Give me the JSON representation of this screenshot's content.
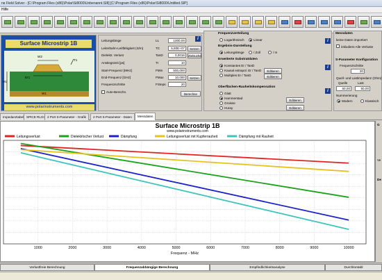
{
  "window": {
    "title": "ne Field Solver - [C:\\Program Files (x86)\\Polar\\Si8000\\Unbenannt.SI8] [C:\\Program Files (x86)\\Polar\\Si8000\\Untitled.SIP]"
  },
  "menu": {
    "item": "Hilfe"
  },
  "structure": {
    "title": "Surface Microstrip 1B",
    "url": "www.polarinstruments.com",
    "labels": {
      "w2": "W2",
      "w1": "W1",
      "t1": "T1",
      "h1": "H1",
      "er1": "Er1"
    }
  },
  "params": {
    "rows": [
      {
        "label": "Leitungslänge",
        "symbol": "LL",
        "value": "1000,00"
      },
      {
        "label": "Leiterbahn-Leitfähigkeit (S/m)",
        "symbol": "TC",
        "value": "5,80E+07",
        "button": "Setzen"
      },
      {
        "label": "Dielektr. Verlust",
        "symbol": "TanD",
        "value": "0,0016",
        "button": "Zielsuche"
      },
      {
        "label": "Anstiegszeit [ps]",
        "symbol": "Tr",
        "value": "10"
      },
      {
        "label": "Start-Frequenz [MHz]",
        "symbol": "FMin",
        "value": "500,000"
      },
      {
        "label": "End-Frequenz [GHz]",
        "symbol": "FMax",
        "value": "10,000",
        "button": "Setzen"
      },
      {
        "label": "Frequenzschritte",
        "symbol": "FSteps",
        "value": "20"
      }
    ],
    "auto_label": "Auto-Berechn.",
    "calc_button": "Berechne"
  },
  "freq": {
    "title": "Frequenzverteilung",
    "log": "Logarithmisch",
    "lin": "Linear",
    "output_title": "Ergebnis-Darstellung",
    "out1": "Leitungslänge",
    "out2": "/ Zoll",
    "out3": "/ m",
    "substrate_title": "Erweiterte Substratdaten",
    "sub1": "Konstantes Er / TanD",
    "sub2": "Kausal extrapol. Er / TanD",
    "sub3": "Multiples Er / TanD",
    "edit": "Editieren",
    "rough_title": "Oberflächen-Rauheitskompensation",
    "r1": "Glatt",
    "r2": "Hammerstad",
    "r3": "Groisse",
    "r4": "Huray"
  },
  "meas": {
    "title": "Messdaten",
    "status": "keine Daten importiert",
    "include": "inkludiere Alle Verluste"
  },
  "sparam": {
    "title": "S-Parameter Konfiguration",
    "steps": "Frequenzschritte",
    "steps_value": "20",
    "impedance": "Quell- und Lastimpedanz (Ohm)",
    "source": "Quelle",
    "load": "Last",
    "source_value": "50,00",
    "load_value": "50,00",
    "numbering": "Nummerierung",
    "modern": "Modern",
    "classic": "Klassisch"
  },
  "tabs": [
    "Impedanztabelle",
    "SPICE RLGC",
    "2 Port S-Parameter - Grafik",
    "2 Port S-Parameter - Daten",
    "Messdaten"
  ],
  "chart_data": {
    "type": "line",
    "title": "Surface Microstrip 1B",
    "subtitle": "www.polarinstruments.com",
    "xlabel": "Frequenz - MHz",
    "ylabel": "",
    "xlim": [
      0,
      10500
    ],
    "x_ticks": [
      1000,
      2000,
      3000,
      4000,
      5000,
      6000,
      7000,
      8000,
      9000,
      10000
    ],
    "grid": true,
    "legend_position": "top",
    "x": [
      500,
      10000
    ],
    "series": [
      {
        "name": "Leitungsverlust",
        "color": "#e0241f",
        "values": [
          0.05,
          0.22
        ]
      },
      {
        "name": "Dielektrischer Verlust",
        "color": "#1aa31a",
        "values": [
          0.03,
          0.55
        ]
      },
      {
        "name": "Dämpfung",
        "color": "#1b22c8",
        "values": [
          0.08,
          0.77
        ]
      },
      {
        "name": "Leitungsverlust mit Kupferrauheit",
        "color": "#e8c21c",
        "values": [
          0.09,
          0.3
        ]
      },
      {
        "name": "Dämpfung mit Rauheit",
        "color": "#3ec4bf",
        "values": [
          0.12,
          0.86
        ]
      }
    ]
  },
  "bottom_tabs": [
    "Verlustfreie Berechnung",
    "Frequenzabhängige Berechnung",
    "Empfindlichkeitsanalyse",
    "Durchlontabl"
  ],
  "rightpanel": {
    "g": "G",
    "ve": "Ve",
    "de": "De"
  }
}
